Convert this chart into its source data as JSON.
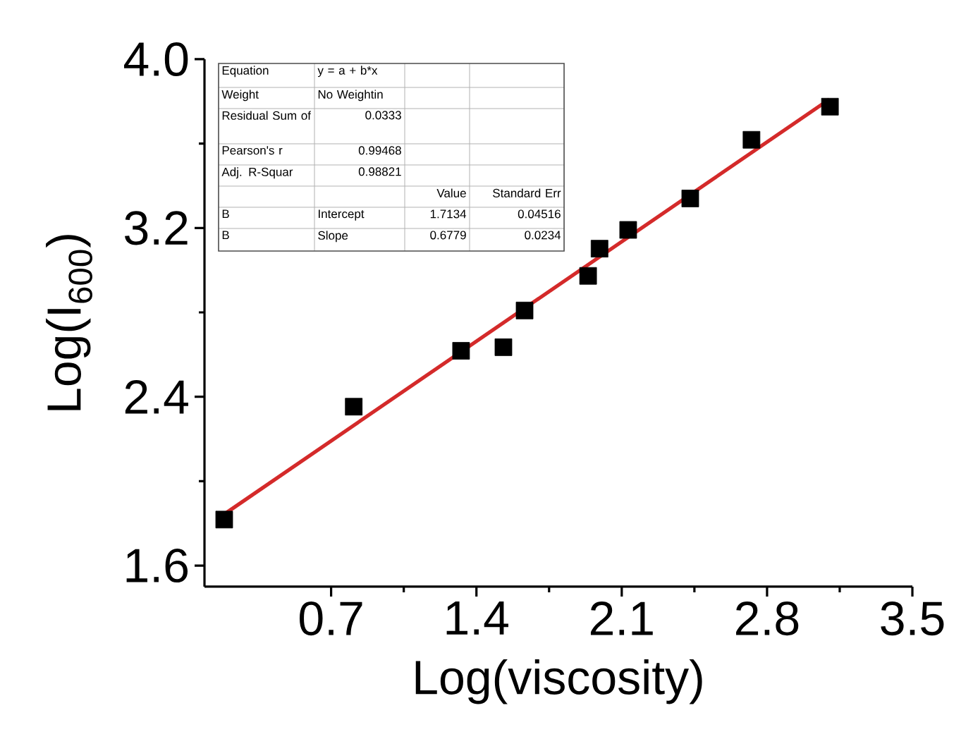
{
  "chart_data": {
    "type": "scatter",
    "xlabel": "Log(viscosity)",
    "ylabel": "Log(I$_{600}$)",
    "xlim": [
      0.09,
      3.5
    ],
    "ylim": [
      1.5,
      4.0
    ],
    "xticks": [
      0.7,
      1.4,
      2.1,
      2.8,
      3.5
    ],
    "yticks": [
      1.6,
      2.4,
      3.2,
      {
        "value": 4.0,
        "label": "4.0"
      }
    ],
    "series": [
      {
        "marker": "square",
        "color": "#000000",
        "x": [
          0.185,
          0.809,
          1.326,
          1.53,
          1.632,
          1.938,
          1.993,
          2.131,
          2.43,
          2.725,
          3.103
        ],
        "values": [
          1.818,
          2.353,
          2.618,
          2.635,
          2.809,
          2.973,
          3.102,
          3.191,
          3.34,
          3.618,
          3.775
        ]
      },
      {
        "type": "line",
        "color": "#d42a2a",
        "x": [
          0.18,
          3.1
        ],
        "values": [
          1.84,
          3.81
        ]
      }
    ],
    "annotations": [
      "Equation",
      "y = a + b*x",
      "Weight",
      "No Weightin",
      "Residual Sum of",
      "0.0333",
      "Pearson's r",
      "0.99468",
      "Adj. R-Squar",
      "0.98821",
      "Value",
      "Standard Err",
      "B",
      "Intercept",
      "1.7134",
      "0.04516",
      "B",
      "Slope",
      "0.6779",
      "0.0234"
    ]
  }
}
